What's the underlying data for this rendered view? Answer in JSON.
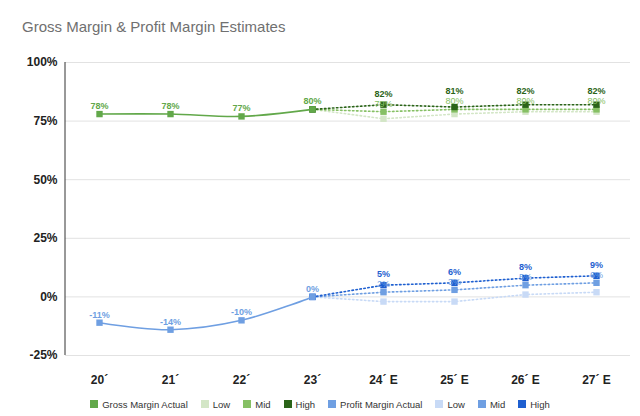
{
  "chart_data": {
    "type": "line",
    "title": "Gross Margin & Profit Margin Estimates",
    "categories": [
      "20´",
      "21´",
      "22´",
      "23´",
      "24´ E",
      "25´ E",
      "26´ E",
      "27´ E"
    ],
    "ylim": [
      -25,
      100
    ],
    "yticks": [
      {
        "value": -25,
        "label": "-25%"
      },
      {
        "value": 0,
        "label": "0%"
      },
      {
        "value": 25,
        "label": "25%"
      },
      {
        "value": 50,
        "label": "50%"
      },
      {
        "value": 75,
        "label": "75%"
      },
      {
        "value": 100,
        "label": "100%"
      }
    ],
    "grid": true,
    "legend": "bottom",
    "data_labels": true,
    "series": [
      {
        "name": "Gross Margin Actual",
        "color": "#62a84a",
        "line_style": "solid",
        "marker": "square",
        "values": [
          78,
          78,
          77,
          80,
          null,
          null,
          null,
          null
        ],
        "value_labels": [
          "78%",
          "78%",
          "77%",
          "80%",
          null,
          null,
          null,
          null
        ]
      },
      {
        "name": "Low",
        "color": "#d3e6c6",
        "line_style": "dotted",
        "marker": "square",
        "data_labels": false,
        "values": [
          null,
          null,
          null,
          80,
          76,
          78,
          79,
          79
        ]
      },
      {
        "name": "Mid",
        "color": "#86c064",
        "line_style": "dotted",
        "marker": "square",
        "values": [
          null,
          null,
          null,
          80,
          79,
          80,
          80,
          80
        ],
        "value_labels": [
          null,
          null,
          null,
          null,
          "79%",
          "80%",
          "80%",
          "80%"
        ]
      },
      {
        "name": "High",
        "color": "#2b6419",
        "line_style": "dotted",
        "marker": "square",
        "values": [
          null,
          null,
          null,
          80,
          82,
          81,
          82,
          82
        ],
        "value_labels": [
          null,
          null,
          null,
          null,
          "82%",
          "81%",
          "82%",
          "82%"
        ]
      },
      {
        "name": "Profit Margin Actual",
        "color": "#6f9fe2",
        "line_style": "solid",
        "marker": "square",
        "values": [
          -11,
          -14,
          -10,
          0,
          null,
          null,
          null,
          null
        ],
        "value_labels": [
          "-11%",
          "-14%",
          "-10%",
          "0%",
          null,
          null,
          null,
          null
        ]
      },
      {
        "name": "Low",
        "color": "#c8daf6",
        "line_style": "dotted",
        "marker": "square",
        "data_labels": false,
        "values": [
          null,
          null,
          null,
          0,
          -2,
          -2,
          1,
          2
        ]
      },
      {
        "name": "Mid",
        "color": "#6f9fe2",
        "line_style": "dotted",
        "marker": "square",
        "values": [
          null,
          null,
          null,
          0,
          2,
          3,
          5,
          6
        ],
        "value_labels": [
          null,
          null,
          null,
          null,
          "2%",
          "3%",
          "5%",
          "6%"
        ]
      },
      {
        "name": "High",
        "color": "#1e5fd0",
        "line_style": "dotted",
        "marker": "square",
        "values": [
          null,
          null,
          null,
          0,
          5,
          6,
          8,
          9
        ],
        "value_labels": [
          null,
          null,
          null,
          null,
          "5%",
          "6%",
          "8%",
          "9%"
        ]
      }
    ]
  }
}
